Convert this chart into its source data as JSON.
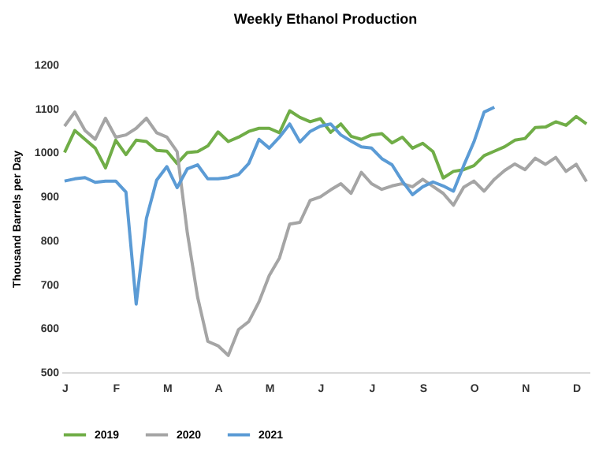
{
  "chart_data": {
    "type": "line",
    "title": "Weekly Ethanol Production",
    "ylabel": "Thousand Barrels per Day",
    "categories": [
      "J",
      null,
      null,
      null,
      null,
      "F",
      null,
      null,
      null,
      null,
      "M",
      null,
      null,
      null,
      null,
      "A",
      null,
      null,
      null,
      null,
      "M",
      null,
      null,
      null,
      null,
      "J",
      null,
      null,
      null,
      null,
      "J",
      null,
      null,
      null,
      null,
      "S",
      null,
      null,
      null,
      null,
      "O",
      null,
      null,
      null,
      null,
      "N",
      null,
      null,
      null,
      null,
      "D",
      null
    ],
    "ylim": [
      500,
      1200
    ],
    "yticks": [
      500,
      600,
      700,
      800,
      900,
      1000,
      1100,
      1200
    ],
    "grid": false,
    "legend": "bottom",
    "marker": "none",
    "line_style": "solid",
    "series": [
      {
        "name": "2019",
        "color": "#70ad47",
        "values": [
          1000,
          1050,
          1030,
          1010,
          965,
          1028,
          995,
          1028,
          1025,
          1005,
          1003,
          975,
          1000,
          1002,
          1015,
          1047,
          1025,
          1035,
          1048,
          1055,
          1055,
          1045,
          1095,
          1080,
          1070,
          1077,
          1046,
          1065,
          1037,
          1030,
          1040,
          1043,
          1022,
          1035,
          1010,
          1021,
          1002,
          942,
          957,
          961,
          970,
          993,
          1003,
          1013,
          1028,
          1032,
          1057,
          1058,
          1070,
          1062,
          1082,
          1065
        ]
      },
      {
        "name": "2020",
        "color": "#a5a5a5",
        "values": [
          1060,
          1092,
          1050,
          1030,
          1078,
          1035,
          1040,
          1055,
          1078,
          1045,
          1035,
          1002,
          817,
          671,
          570,
          560,
          538,
          597,
          615,
          660,
          720,
          760,
          837,
          841,
          891,
          899,
          915,
          929,
          907,
          955,
          929,
          916,
          924,
          929,
          922,
          939,
          923,
          907,
          880,
          921,
          935,
          912,
          939,
          959,
          974,
          961,
          987,
          973,
          989,
          957,
          973,
          934
        ]
      },
      {
        "name": "2021",
        "color": "#5b9bd5",
        "values": [
          935,
          940,
          943,
          932,
          935,
          935,
          910,
          655,
          850,
          937,
          968,
          920,
          963,
          972,
          940,
          940,
          943,
          950,
          975,
          1030,
          1010,
          1035,
          1065,
          1024,
          1048,
          1060,
          1065,
          1040,
          1026,
          1013,
          1010,
          986,
          972,
          935,
          904,
          922,
          933,
          924,
          912,
          970,
          1024,
          1092,
          1103,
          null,
          null,
          null,
          null,
          null,
          null,
          null,
          null,
          null
        ]
      }
    ]
  }
}
